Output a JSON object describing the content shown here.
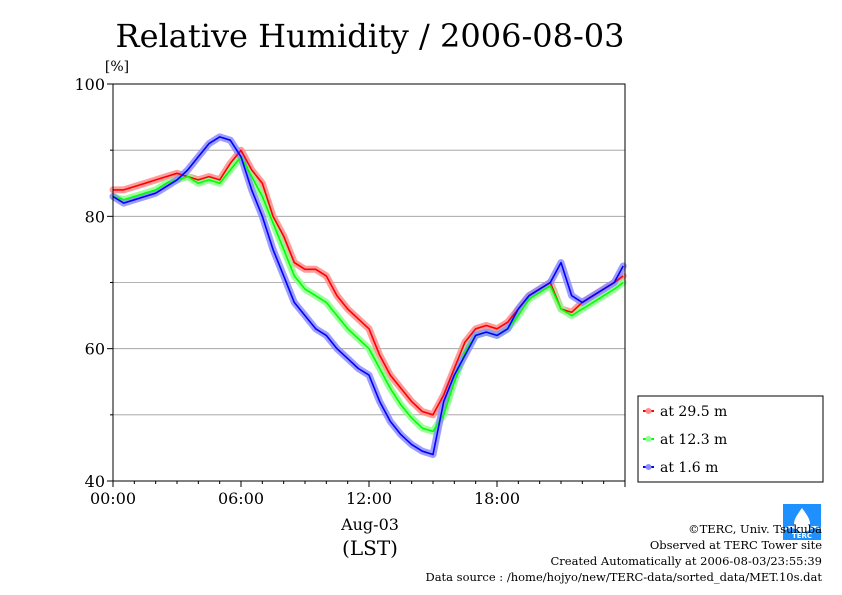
{
  "chart_data": {
    "type": "line",
    "title": "Relative Humidity / 2006-08-03",
    "ylabel": "[%]",
    "xlabel": "(LST)",
    "date_label": "Aug-03",
    "xlim": [
      "00:00",
      "24:00"
    ],
    "ylim": [
      40,
      100
    ],
    "grid": true,
    "legend_position": "outside-right-bottom",
    "x_ticks": [
      "00:00",
      "06:00",
      "12:00",
      "18:00"
    ],
    "y_ticks": [
      40,
      60,
      80,
      100
    ],
    "x": [
      "00:00",
      "00:30",
      "01:00",
      "01:30",
      "02:00",
      "02:30",
      "03:00",
      "03:30",
      "04:00",
      "04:30",
      "05:00",
      "05:30",
      "06:00",
      "06:30",
      "07:00",
      "07:30",
      "08:00",
      "08:30",
      "09:00",
      "09:30",
      "10:00",
      "10:30",
      "11:00",
      "11:30",
      "12:00",
      "12:30",
      "13:00",
      "13:30",
      "14:00",
      "14:30",
      "15:00",
      "15:30",
      "16:00",
      "16:30",
      "17:00",
      "17:30",
      "18:00",
      "18:30",
      "19:00",
      "19:30",
      "20:00",
      "20:30",
      "21:00",
      "21:30",
      "22:00",
      "22:30",
      "23:00",
      "23:30",
      "23:55"
    ],
    "series": [
      {
        "name": "at 29.5 m",
        "color": "#ff0000",
        "values": [
          84,
          84,
          84.5,
          85,
          85.5,
          86,
          86.5,
          86,
          85.5,
          86,
          85.5,
          88,
          90,
          87,
          85,
          80,
          77,
          73,
          72,
          72,
          71,
          68,
          66,
          64.5,
          63,
          59,
          56,
          54,
          52,
          50.5,
          50,
          53,
          57,
          61,
          63,
          63.5,
          63,
          64,
          66,
          68,
          69,
          70,
          66,
          65.5,
          67,
          68,
          69,
          70,
          71
        ]
      },
      {
        "name": "at 12.3 m",
        "color": "#00ff00",
        "values": [
          83,
          82.5,
          83,
          83.5,
          84,
          85,
          85.5,
          86,
          85,
          85.5,
          85,
          87,
          89,
          86,
          83,
          79,
          75,
          71,
          69,
          68,
          67,
          65,
          63,
          61.5,
          60,
          57,
          54,
          51.5,
          49.5,
          48,
          47.5,
          50,
          55,
          59.5,
          62,
          62.5,
          62,
          63,
          65,
          67.5,
          68.5,
          69.5,
          66,
          65,
          66,
          67,
          68,
          69,
          70
        ]
      },
      {
        "name": "at 1.6 m",
        "color": "#0000ff",
        "values": [
          83,
          82,
          82.5,
          83,
          83.5,
          84.5,
          85.5,
          87,
          89,
          91,
          92,
          91.5,
          89,
          84,
          80,
          75,
          71,
          67,
          65,
          63,
          62,
          60,
          58.5,
          57,
          56,
          52,
          49,
          47,
          45.5,
          44.5,
          44,
          52,
          56,
          59,
          62,
          62.5,
          62,
          63,
          66,
          68,
          69,
          70,
          73,
          68,
          67,
          68,
          69,
          70,
          72.5
        ]
      }
    ]
  },
  "footer": {
    "copyright": "©TERC, Univ. Tsukuba",
    "observed": "Observed at TERC Tower site",
    "created": "Created Automatically at 2006-08-03/23:55:39",
    "source": "Data source : /home/hojyo/new/TERC-data/sorted_data/MET.10s.dat"
  },
  "logo": {
    "text": "TERC",
    "color": "#1e90ff"
  }
}
